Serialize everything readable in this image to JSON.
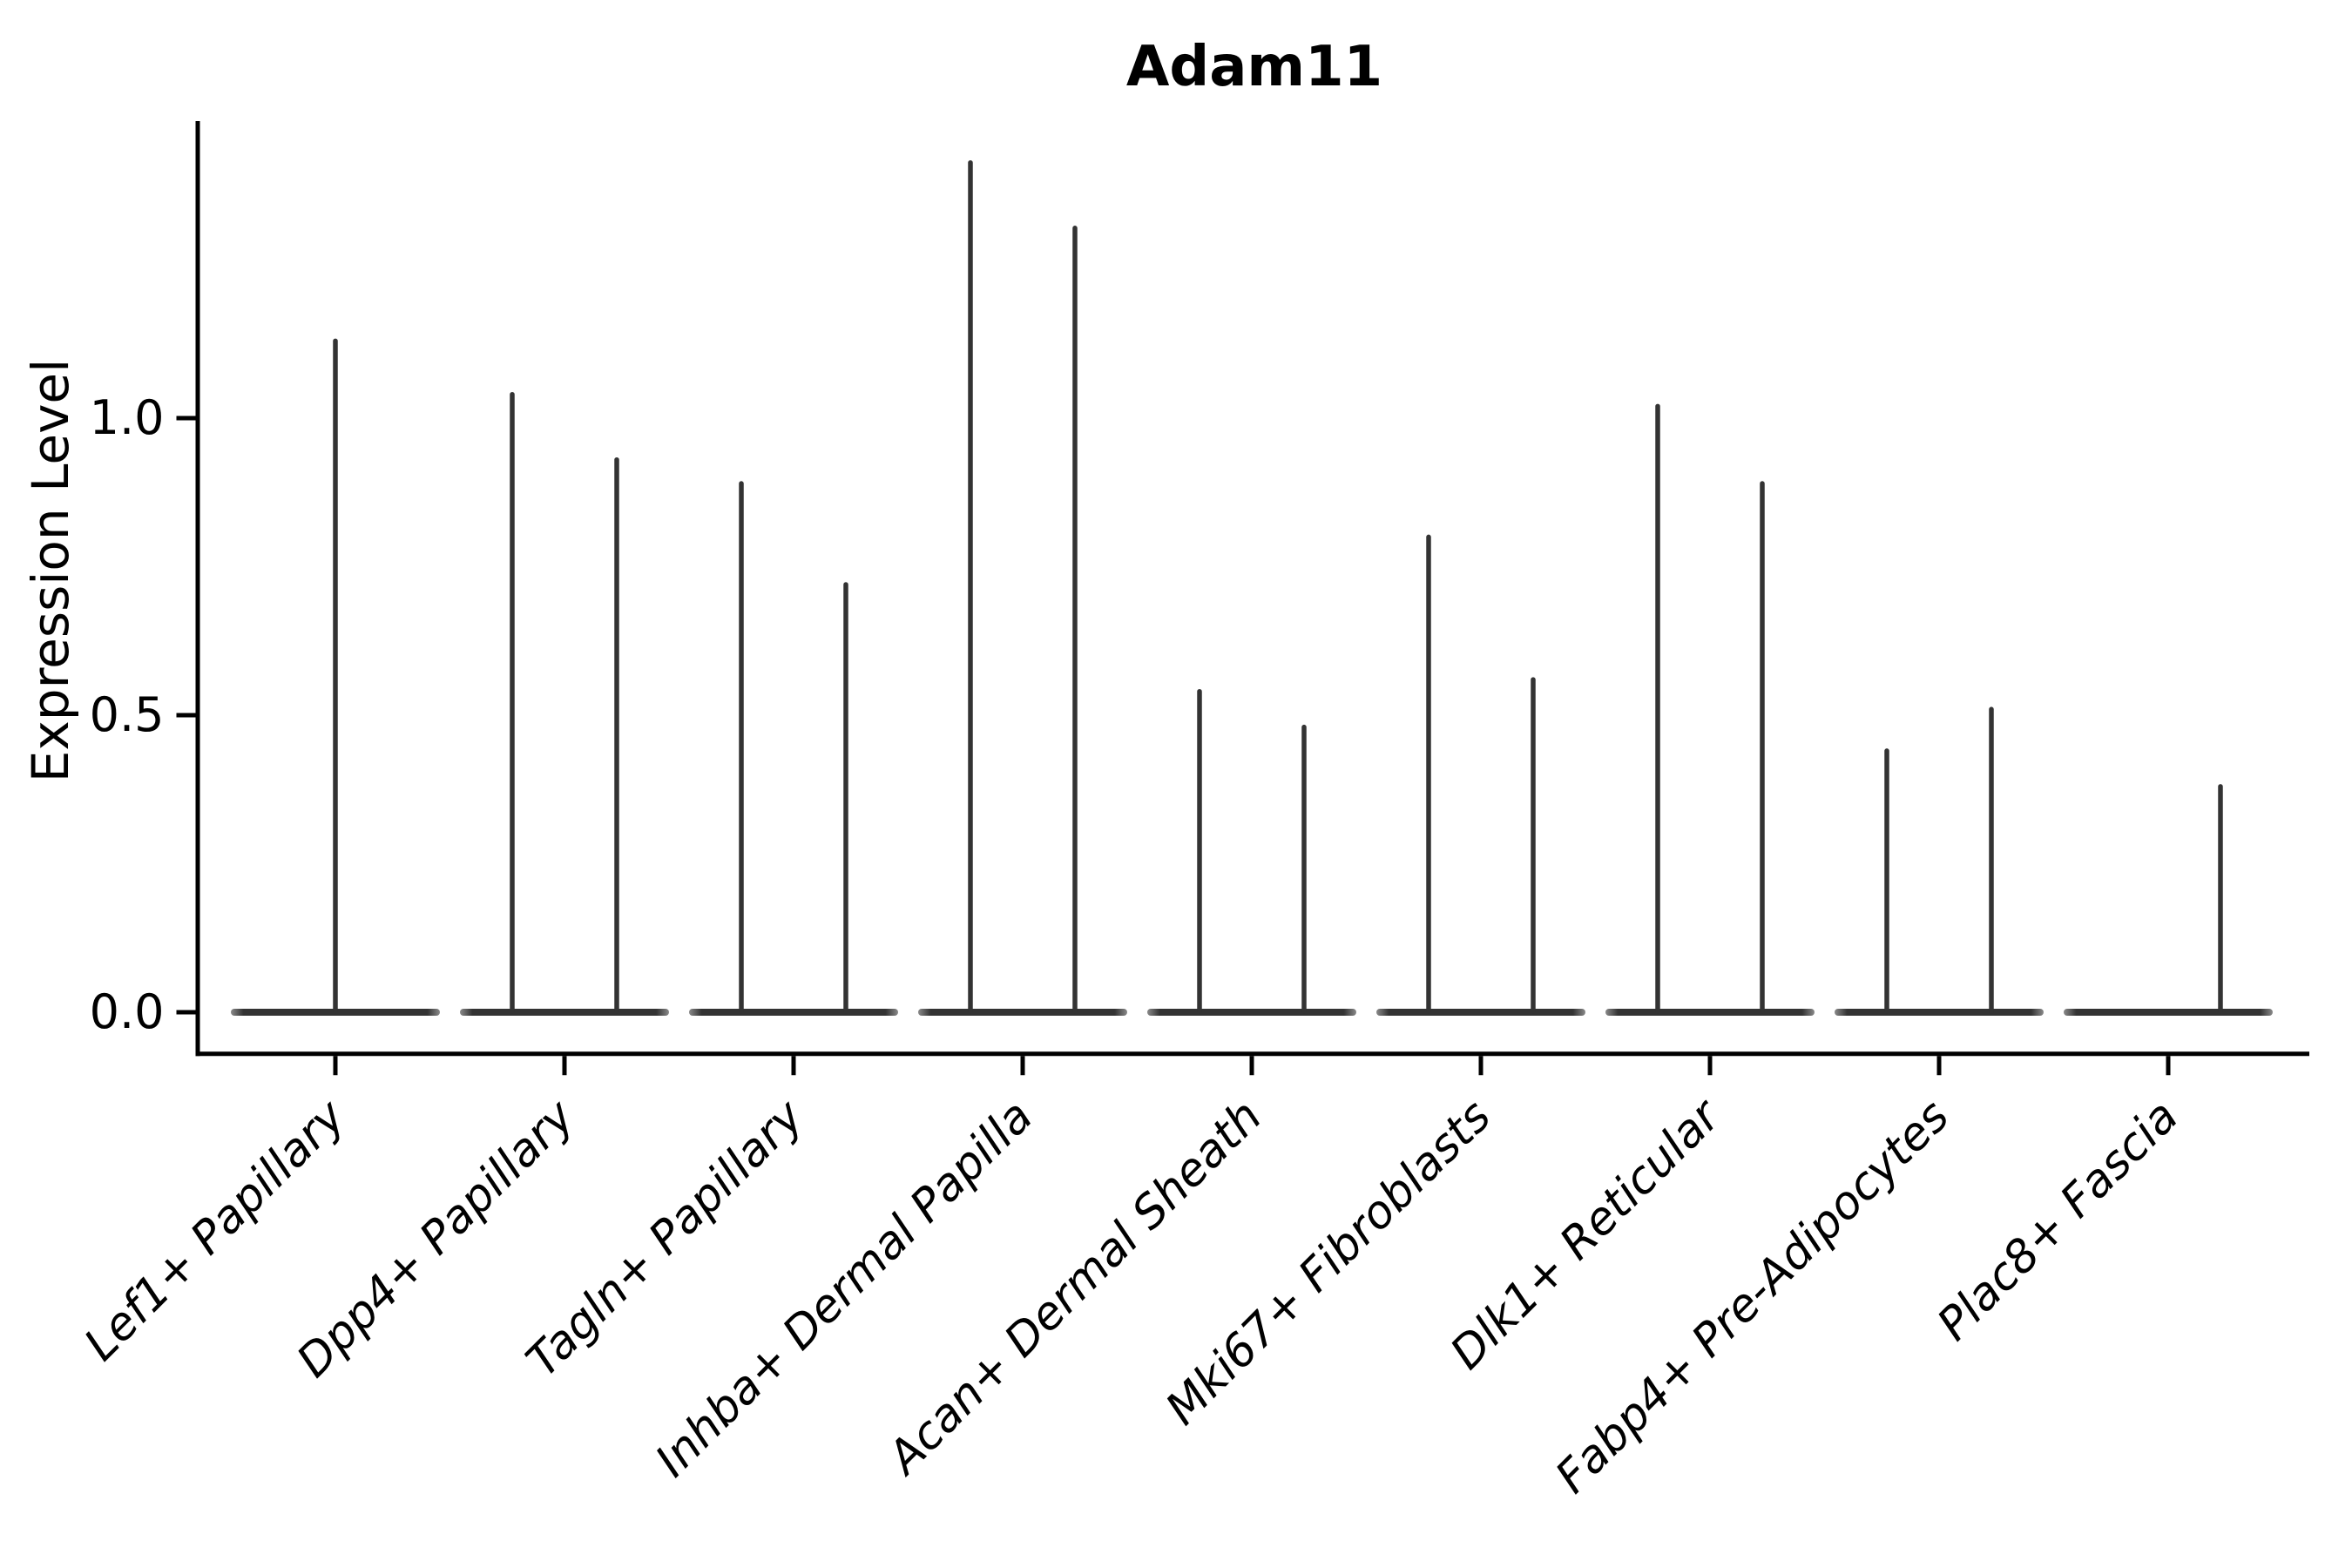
{
  "title": "Adam11",
  "ylabel": "Expression Level",
  "colors": {
    "violin": "#333333",
    "violin_tip": "#8a8a8a",
    "axis": "#000000",
    "text": "#000000",
    "background": "#ffffff"
  },
  "chart_data": {
    "type": "violin",
    "title": "Adam11",
    "xlabel": "",
    "ylabel": "Expression Level",
    "ylim": [
      -0.07,
      1.5
    ],
    "grid": false,
    "legend": "none",
    "yticks": [
      {
        "value": 0.0,
        "label": "0.0"
      },
      {
        "value": 0.5,
        "label": "0.5"
      },
      {
        "value": 1.0,
        "label": "1.0"
      }
    ],
    "categories": [
      "Lef1+ Papillary",
      "Dpp4+ Papillary",
      "Tagln+ Papillary",
      "Inhba+ Dermal Papilla",
      "Acan+ Dermal Sheath",
      "Mki67+ Fibroblasts",
      "Dlk1+ Reticular",
      "Fabp4+ Pre-Adipocytes",
      "Plac8+ Fascia"
    ],
    "violins": [
      {
        "category": "Lef1+ Papillary",
        "baseline_value": 0.0,
        "spikes": [
          {
            "pos": 0,
            "max": 1.13
          }
        ]
      },
      {
        "category": "Dpp4+ Papillary",
        "baseline_value": 0.0,
        "spikes": [
          {
            "pos": -1,
            "max": 1.04
          },
          {
            "pos": 1,
            "max": 0.93
          }
        ]
      },
      {
        "category": "Tagln+ Papillary",
        "baseline_value": 0.0,
        "spikes": [
          {
            "pos": -1,
            "max": 0.89
          },
          {
            "pos": 1,
            "max": 0.72
          }
        ]
      },
      {
        "category": "Inhba+ Dermal Papilla",
        "baseline_value": 0.0,
        "spikes": [
          {
            "pos": -1,
            "max": 1.43
          },
          {
            "pos": 1,
            "max": 1.32
          }
        ]
      },
      {
        "category": "Acan+ Dermal Sheath",
        "baseline_value": 0.0,
        "spikes": [
          {
            "pos": -1,
            "max": 0.54
          },
          {
            "pos": 1,
            "max": 0.48
          }
        ]
      },
      {
        "category": "Mki67+ Fibroblasts",
        "baseline_value": 0.0,
        "spikes": [
          {
            "pos": -1,
            "max": 0.8
          },
          {
            "pos": 1,
            "max": 0.56
          }
        ]
      },
      {
        "category": "Dlk1+ Reticular",
        "baseline_value": 0.0,
        "spikes": [
          {
            "pos": -1,
            "max": 1.02
          },
          {
            "pos": 1,
            "max": 0.89
          }
        ]
      },
      {
        "category": "Fabp4+ Pre-Adipocytes",
        "baseline_value": 0.0,
        "spikes": [
          {
            "pos": -1,
            "max": 0.44
          },
          {
            "pos": 1,
            "max": 0.51
          }
        ]
      },
      {
        "category": "Plac8+ Fascia",
        "baseline_value": 0.0,
        "spikes": [
          {
            "pos": 1,
            "max": 0.38
          }
        ]
      }
    ]
  }
}
